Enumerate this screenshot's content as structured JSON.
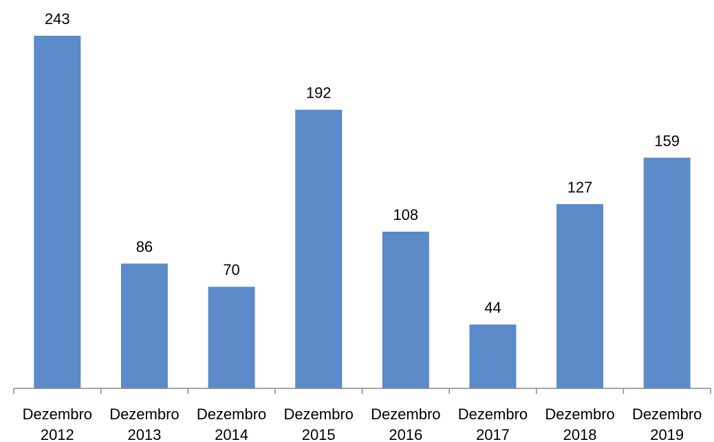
{
  "colors": {
    "bar": "#5b8bc8",
    "axis": "#898989",
    "text": "#000000"
  },
  "chart_data": {
    "type": "bar",
    "title": "",
    "xlabel": "",
    "ylabel": "",
    "categories": [
      [
        "Dezembro",
        "2012"
      ],
      [
        "Dezembro",
        "2013"
      ],
      [
        "Dezembro",
        "2014"
      ],
      [
        "Dezembro",
        "2015"
      ],
      [
        "Dezembro",
        "2016"
      ],
      [
        "Dezembro",
        "2017"
      ],
      [
        "Dezembro",
        "2018"
      ],
      [
        "Dezembro",
        "2019"
      ]
    ],
    "values": [
      243,
      86,
      70,
      192,
      108,
      44,
      127,
      159
    ],
    "ylim": [
      0,
      243
    ],
    "grid": false,
    "legend": "none",
    "data_labels": true
  }
}
